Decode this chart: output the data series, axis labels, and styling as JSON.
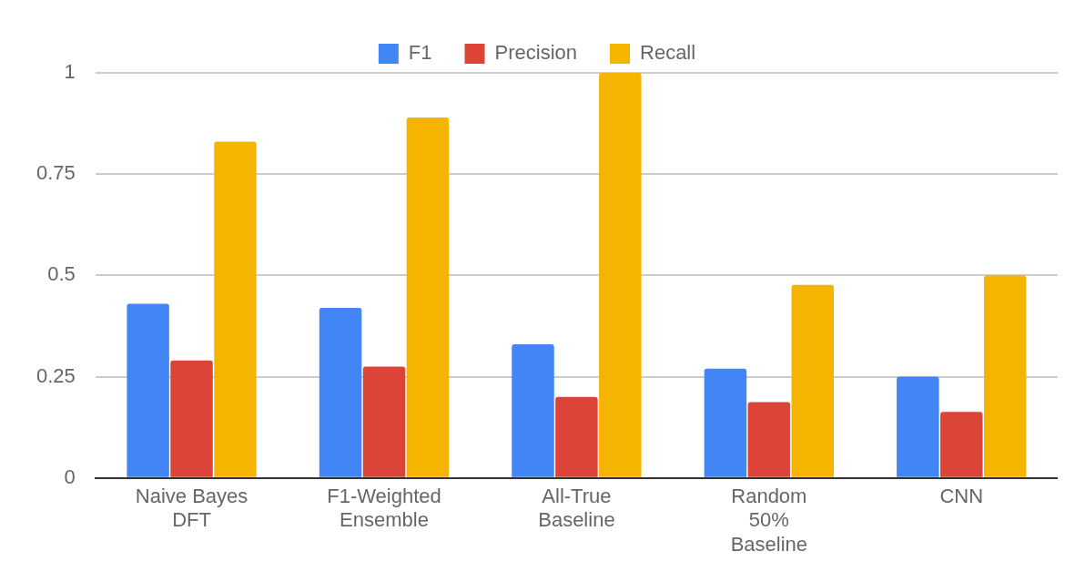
{
  "chart_data": {
    "type": "bar",
    "categories": [
      "Naive Bayes\nDFT",
      "F1-Weighted\nEnsemble",
      "All-True\nBaseline",
      "Random\n50%\nBaseline",
      "CNN"
    ],
    "series": [
      {
        "name": "F1",
        "color": "#4285f4",
        "values": [
          0.43,
          0.42,
          0.33,
          0.27,
          0.25
        ]
      },
      {
        "name": "Precision",
        "color": "#db4437",
        "values": [
          0.29,
          0.275,
          0.2,
          0.187,
          0.163
        ]
      },
      {
        "name": "Recall",
        "color": "#f4b400",
        "values": [
          0.83,
          0.89,
          1,
          0.477,
          0.5
        ]
      }
    ],
    "ylim": [
      0,
      1
    ],
    "yticks": [
      0,
      0.25,
      0.5,
      0.75,
      1
    ],
    "grid": "y",
    "legend": "top"
  }
}
